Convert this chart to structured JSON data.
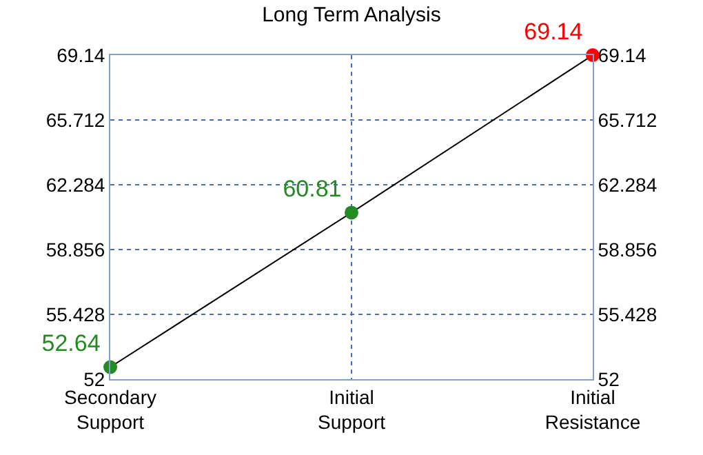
{
  "chart_data": {
    "type": "line",
    "title": "Long Term Analysis",
    "categories": [
      "Secondary Support",
      "Initial Support",
      "Initial Resistance"
    ],
    "series": [
      {
        "color": "#000000",
        "colors": [
          "#228b22",
          "#228b22",
          "#ff0000"
        ],
        "values": [
          52.64,
          60.81,
          69.14
        ]
      }
    ],
    "ylim": [
      52,
      69.14
    ],
    "yticks": [
      52,
      55.428,
      58.856,
      62.284,
      65.712,
      69.14
    ],
    "y2lim": [
      52,
      69.14
    ],
    "y2ticks": [
      52,
      55.428,
      58.856,
      62.284,
      65.712,
      69.14
    ],
    "grid": true,
    "data_labels": true,
    "marker": "circle",
    "line_style": "solid",
    "legend": false
  }
}
